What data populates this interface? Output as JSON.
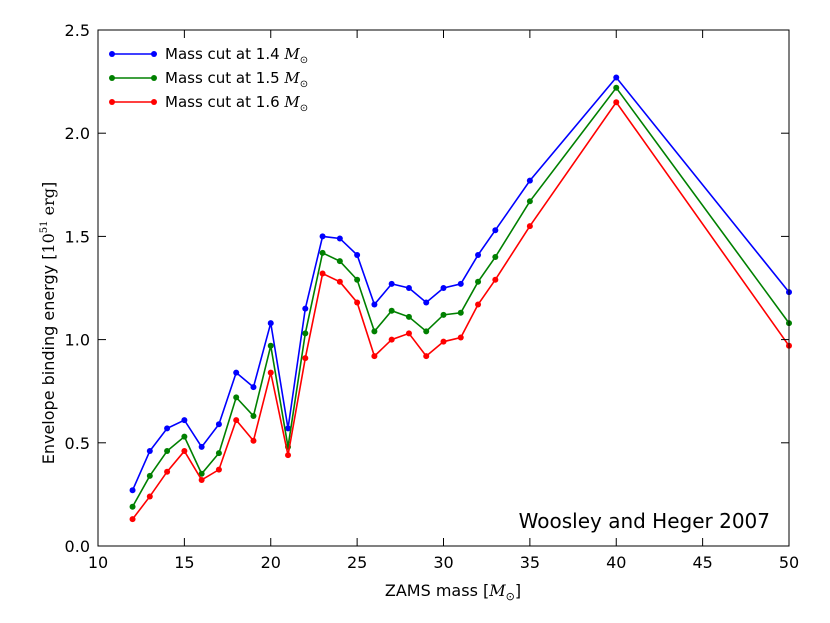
{
  "chart_data": {
    "type": "line",
    "title": "",
    "xlabel": "ZAMS mass",
    "xlabel_unit": "M",
    "ylabel": "Envelope binding energy",
    "ylabel_unit_base": "10",
    "ylabel_unit_exp": "51",
    "ylabel_unit_suffix": "erg",
    "sun_symbol": "⊙",
    "xlim": [
      10,
      50
    ],
    "ylim": [
      0,
      2.5
    ],
    "xticks": [
      10,
      15,
      20,
      25,
      30,
      35,
      40,
      45,
      50
    ],
    "yticks": [
      0.0,
      0.5,
      1.0,
      1.5,
      2.0,
      2.5
    ],
    "ytick_labels": [
      "0.0",
      "0.5",
      "1.0",
      "1.5",
      "2.0",
      "2.5"
    ],
    "grid": false,
    "legend_position": "top-left",
    "annotation": "Woosley and Heger 2007",
    "x": [
      12,
      13,
      14,
      15,
      16,
      17,
      18,
      19,
      20,
      21,
      22,
      23,
      24,
      25,
      26,
      27,
      28,
      29,
      30,
      31,
      32,
      33,
      35,
      40,
      50
    ],
    "series": [
      {
        "name": "Mass cut at 1.4",
        "legend_prefix": "Mass cut at 1.4",
        "color": "#0000ff",
        "values": [
          0.27,
          0.46,
          0.57,
          0.61,
          0.48,
          0.59,
          0.84,
          0.77,
          1.08,
          0.57,
          1.15,
          1.5,
          1.49,
          1.41,
          1.17,
          1.27,
          1.25,
          1.18,
          1.25,
          1.27,
          1.41,
          1.53,
          1.77,
          2.27,
          1.23
        ]
      },
      {
        "name": "Mass cut at 1.5",
        "legend_prefix": "Mass cut at 1.5",
        "color": "#008000",
        "values": [
          0.19,
          0.34,
          0.46,
          0.53,
          0.35,
          0.45,
          0.72,
          0.63,
          0.97,
          0.48,
          1.03,
          1.42,
          1.38,
          1.29,
          1.04,
          1.14,
          1.11,
          1.04,
          1.12,
          1.13,
          1.28,
          1.4,
          1.67,
          2.22,
          1.08
        ]
      },
      {
        "name": "Mass cut at 1.6",
        "legend_prefix": "Mass cut at 1.6",
        "color": "#ff0000",
        "values": [
          0.13,
          0.24,
          0.36,
          0.46,
          0.32,
          0.37,
          0.61,
          0.51,
          0.84,
          0.44,
          0.91,
          1.32,
          1.28,
          1.18,
          0.92,
          1.0,
          1.03,
          0.92,
          0.99,
          1.01,
          1.17,
          1.29,
          1.55,
          2.15,
          0.97
        ]
      }
    ]
  }
}
